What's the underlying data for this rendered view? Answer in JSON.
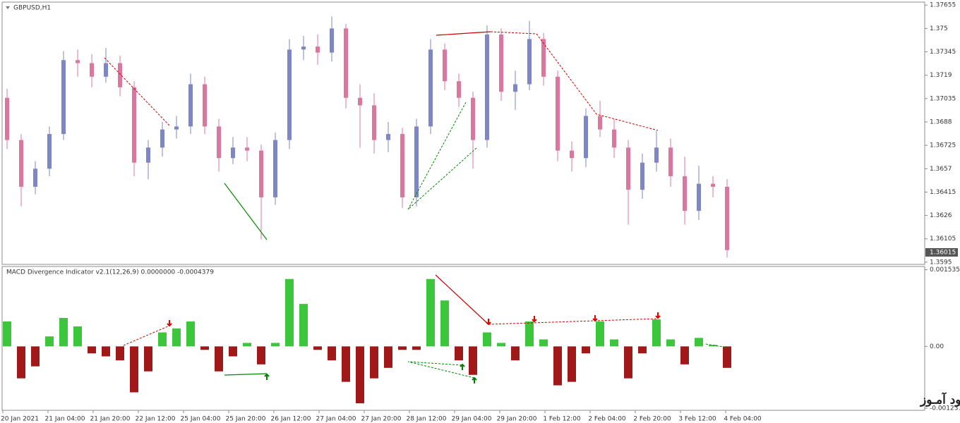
{
  "watermark": "انتشار در وبسایت سـود آمـوز",
  "chart_data": [
    {
      "type": "candlestick",
      "title": "GBPUSD,H1",
      "open": [
        1.3704,
        1.3676,
        1.3645,
        1.3657,
        1.368,
        1.3729,
        1.3727,
        1.3718,
        1.3727,
        1.3711,
        1.3661,
        1.3671,
        1.3683,
        1.3685,
        1.3713,
        1.3685,
        1.3664,
        1.3671,
        1.3669,
        1.3638,
        1.3676,
        1.3736,
        1.3738,
        1.3734,
        1.375,
        1.3704,
        1.3699,
        1.3676,
        1.368,
        1.3638,
        1.3685,
        1.3736,
        1.3715,
        1.3704,
        1.3676,
        1.3746,
        1.3708,
        1.3713,
        1.3743,
        1.3718,
        1.3669,
        1.3664,
        1.3692,
        1.3683,
        1.3671,
        1.3643,
        1.3661,
        1.3671,
        1.3652,
        1.3629,
        1.3647,
        1.3645
      ],
      "high": [
        1.371,
        1.368,
        1.3662,
        1.3685,
        1.3735,
        1.3736,
        1.3733,
        1.3737,
        1.3732,
        1.3715,
        1.3676,
        1.3688,
        1.3692,
        1.372,
        1.3718,
        1.369,
        1.3678,
        1.3678,
        1.3673,
        1.3681,
        1.3743,
        1.3745,
        1.3746,
        1.3758,
        1.3753,
        1.3713,
        1.3707,
        1.3688,
        1.3684,
        1.369,
        1.3743,
        1.374,
        1.372,
        1.3708,
        1.3752,
        1.375,
        1.3722,
        1.3755,
        1.3747,
        1.3722,
        1.3675,
        1.3697,
        1.3702,
        1.369,
        1.3676,
        1.3667,
        1.3682,
        1.3677,
        1.3665,
        1.3659,
        1.3652,
        1.365
      ],
      "low": [
        1.367,
        1.3632,
        1.364,
        1.3652,
        1.3676,
        1.3718,
        1.3711,
        1.3714,
        1.3705,
        1.3652,
        1.365,
        1.3665,
        1.3677,
        1.368,
        1.368,
        1.3655,
        1.366,
        1.3662,
        1.361,
        1.3633,
        1.367,
        1.3729,
        1.3726,
        1.3728,
        1.3697,
        1.3671,
        1.3667,
        1.3668,
        1.3631,
        1.3632,
        1.368,
        1.3709,
        1.3698,
        1.3657,
        1.3671,
        1.3702,
        1.3696,
        1.3709,
        1.3712,
        1.3662,
        1.3655,
        1.3658,
        1.3678,
        1.3664,
        1.362,
        1.3637,
        1.3655,
        1.3645,
        1.362,
        1.3623,
        1.3638,
        1.3598
      ],
      "close": [
        1.3676,
        1.3645,
        1.3657,
        1.368,
        1.3729,
        1.3727,
        1.3718,
        1.3727,
        1.3711,
        1.3661,
        1.3671,
        1.3683,
        1.3685,
        1.3713,
        1.3685,
        1.3664,
        1.3671,
        1.3669,
        1.3638,
        1.3676,
        1.3736,
        1.3738,
        1.3734,
        1.375,
        1.3704,
        1.3699,
        1.3676,
        1.368,
        1.3638,
        1.3685,
        1.3736,
        1.3715,
        1.3704,
        1.3676,
        1.3746,
        1.3708,
        1.3713,
        1.3743,
        1.3718,
        1.3669,
        1.3664,
        1.3692,
        1.3683,
        1.3671,
        1.3643,
        1.3661,
        1.3671,
        1.3652,
        1.3629,
        1.3647,
        1.3645,
        1.3603
      ],
      "up_color": "#7f86c6",
      "down_color": "#d9779f",
      "ylim": [
        1.3594,
        1.3767
      ],
      "yticks": [
        1.37655,
        1.375,
        1.37345,
        1.3719,
        1.37035,
        1.3688,
        1.36725,
        1.3657,
        1.36415,
        1.3626,
        1.36105,
        1.3595
      ],
      "last_price": 1.36015
    },
    {
      "type": "bar",
      "title": "MACD Divergence Indicator v2.1(12,26,9) 0.0000000 -0.0004379",
      "values": [
        0.0005,
        -0.00064,
        -0.0004,
        0.0002,
        0.00057,
        0.0004,
        -0.00014,
        -0.0002,
        -0.00028,
        -0.00092,
        -0.0005,
        0.00028,
        0.00036,
        0.0005,
        -7e-05,
        -0.0005,
        -0.0002,
        7e-05,
        -0.00036,
        7e-05,
        0.00135,
        0.00085,
        -7e-05,
        -0.00028,
        -0.00071,
        -0.00114,
        -0.00064,
        -0.00043,
        -7e-05,
        -7e-05,
        0.00135,
        0.00092,
        -0.00028,
        -0.00057,
        0.00028,
        7e-05,
        -0.00028,
        0.0005,
        0.00014,
        -0.00078,
        -0.00071,
        -0.00014,
        0.0005,
        0.00014,
        -0.00064,
        -0.00014,
        0.00054,
        0.00014,
        -0.00036,
        0.00017,
        3e-05,
        -0.00043
      ],
      "pos_color": "#3cc63c",
      "neg_color": "#a01818",
      "ylim": [
        -0.00128,
        0.0016
      ],
      "yticks": [
        0.0015354,
        {
          "value": 0,
          "label": "0.00"
        },
        -0.001237
      ],
      "x_labels": [
        "20 Jan 2021",
        "21 Jan 04:00",
        "21 Jan 20:00",
        "22 Jan 12:00",
        "25 Jan 04:00",
        "25 Jan 20:00",
        "26 Jan 12:00",
        "27 Jan 04:00",
        "27 Jan 20:00",
        "28 Jan 12:00",
        "29 Jan 04:00",
        "29 Jan 20:00",
        "1 Feb 12:00",
        "2 Feb 04:00",
        "2 Feb 20:00",
        "3 Feb 12:00",
        "4 Feb 04:00"
      ]
    }
  ]
}
